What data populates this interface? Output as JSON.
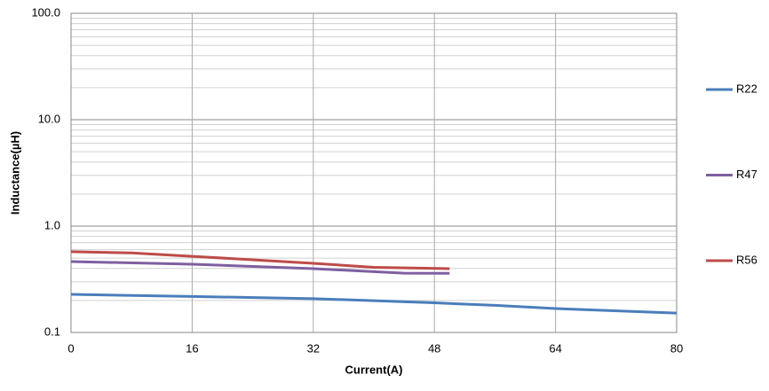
{
  "chart_data": {
    "type": "line",
    "x_label": "Current(A)",
    "y_label": "Inductance(µH)",
    "xlim": [
      0,
      80
    ],
    "xticks": [
      0,
      16,
      32,
      48,
      64,
      80
    ],
    "ylim": [
      0.1,
      100
    ],
    "yticks": [
      0.1,
      {
        "value": 1,
        "label": "1.0"
      },
      {
        "value": 10,
        "label": "10.0"
      },
      {
        "value": 100,
        "label": "100.0"
      }
    ],
    "y_log": true,
    "grid": true,
    "legend": "right",
    "series": [
      {
        "name": "R22",
        "color": "#4a7ebb",
        "x": [
          0,
          16,
          32,
          48,
          56,
          64,
          80
        ],
        "values": [
          0.228,
          0.218,
          0.208,
          0.19,
          0.18,
          0.168,
          0.152
        ]
      },
      {
        "name": "R47",
        "color": "#7e5fa0",
        "x": [
          0,
          16,
          32,
          44,
          50
        ],
        "values": [
          0.464,
          0.438,
          0.398,
          0.361,
          0.36
        ]
      },
      {
        "name": "R56",
        "color": "#be4b48",
        "x": [
          0,
          8,
          16,
          32,
          40,
          50
        ],
        "values": [
          0.574,
          0.56,
          0.52,
          0.447,
          0.41,
          0.398
        ]
      }
    ]
  }
}
